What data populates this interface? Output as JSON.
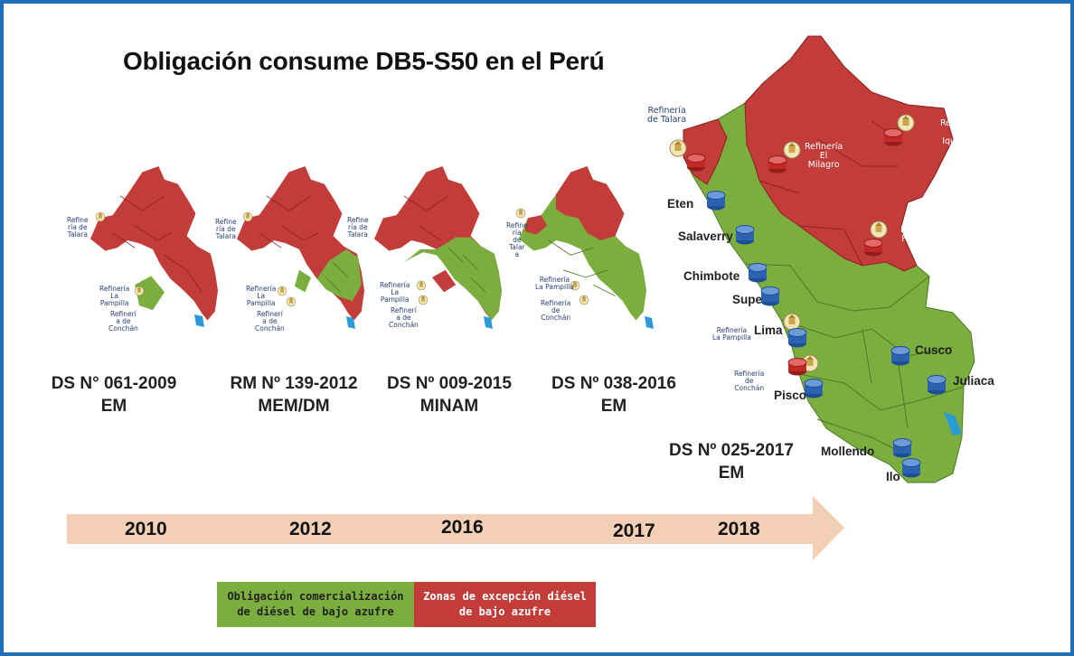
{
  "title": "Obligación consume  DB5-S50 en el Perú",
  "colors": {
    "obligation_green": "#7bad3f",
    "exception_red": "#c23d3a",
    "timeline_arrow": "#f2cfb5",
    "frame_blue": "#1f6fb8",
    "storage_blue": "#2c63b0"
  },
  "maps": [
    {
      "year": "2010",
      "decree": [
        "DS N° 061-2009",
        "EM"
      ],
      "labels": {
        "talara": [
          "Refine",
          "ría de",
          "Talara"
        ],
        "lapampilla": [
          "Refinería",
          "La",
          "Pampilla"
        ],
        "conchan": [
          "Refinerí",
          "a de",
          "Conchán"
        ]
      }
    },
    {
      "year": "2012",
      "decree": [
        "RM Nº 139-2012",
        "MEM/DM"
      ],
      "labels": {
        "talara": [
          "Refine",
          "ría de",
          "Talara"
        ],
        "talara_alt": [
          "Refine",
          "ría de",
          "Talara"
        ],
        "lapampilla": [
          "Refinería",
          "La",
          "Pampilla"
        ],
        "conchan": [
          "Refinerí",
          "a de",
          "Conchán"
        ]
      }
    },
    {
      "year": "2016",
      "decree": [
        "DS Nº 009-2015",
        "MINAM"
      ],
      "labels": {
        "lapampilla": [
          "Refinería",
          "La",
          "Pampilla"
        ],
        "conchan": [
          "Refinerí",
          "a de",
          "Conchán"
        ]
      }
    },
    {
      "year": "2017",
      "decree": [
        "DS Nº 038-2016",
        "EM"
      ],
      "labels": {
        "talara": [
          "Refine",
          "ría",
          "de",
          "Talar",
          "a"
        ],
        "lapampilla": [
          "Refinería",
          "La Pampilla"
        ],
        "conchan": [
          "Refinería",
          "de",
          "Conchán"
        ]
      }
    },
    {
      "year": "2018",
      "decree": [
        "DS Nº 025-2017",
        "EM"
      ]
    }
  ],
  "big_map": {
    "refineries": {
      "talara": [
        "Refinería",
        "de Talara"
      ],
      "el_milagro": [
        "Refinería",
        "El",
        "Milagro"
      ],
      "iquitos": [
        "Refinerí",
        "a",
        "Iquitos"
      ],
      "pucallpa": [
        "Refinería",
        "Pucallpa"
      ],
      "lapampilla": [
        "Refinería",
        "La Pampilla"
      ],
      "conchan": [
        "Refinería",
        "de",
        "Conchán"
      ]
    },
    "cities": [
      "Eten",
      "Salaverry",
      "Chimbote",
      "Supe",
      "Lima",
      "Pisco",
      "Mollendo",
      "Ilo",
      "Cusco",
      "Juliaca"
    ]
  },
  "legend": {
    "green": [
      "Obligación comercialización",
      "de diésel de bajo azufre"
    ],
    "red": [
      "Zonas de excepción diésel",
      "de bajo azufre"
    ]
  }
}
